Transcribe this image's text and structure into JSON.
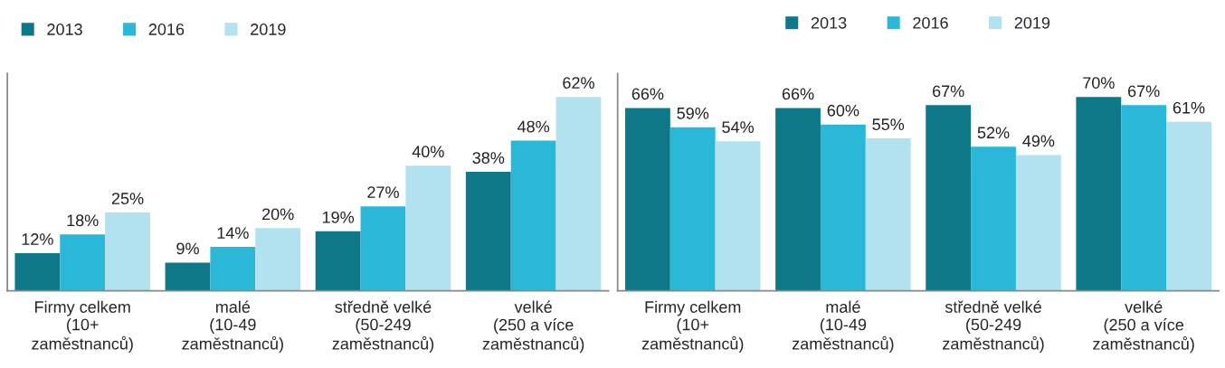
{
  "chart_data": [
    {
      "type": "bar",
      "categories": [
        "Firmy celkem\n(10+\nzaměstnanců)",
        "malé\n(10-49\nzaměstnanců)",
        "středně velké\n(50-249\nzaměstnanců)",
        "velké\n(250 a více\nzaměstnanců)"
      ],
      "legend": "top left",
      "tick_labels": "x",
      "grid": false,
      "series": [
        {
          "name": "2013",
          "color": "#0e7888",
          "values": [
            12,
            9,
            19,
            38
          ],
          "value_labels": [
            "12%",
            "9%",
            "19%",
            "38%"
          ]
        },
        {
          "name": "2016",
          "color": "#2bb8d8",
          "values": [
            18,
            14,
            27,
            48
          ],
          "value_labels": [
            "18%",
            "14%",
            "27%",
            "48%"
          ]
        },
        {
          "name": "2019",
          "color": "#b2e1ef",
          "values": [
            25,
            20,
            40,
            62
          ],
          "value_labels": [
            "25%",
            "20%",
            "40%",
            "62%"
          ]
        }
      ]
    },
    {
      "type": "bar",
      "categories": [
        "Firmy celkem\n(10+\nzaměstnanců)",
        "malé\n(10-49\nzaměstnanců)",
        "středně velké\n(50-249\nzaměstnanců)",
        "velké\n(250 a více\nzaměstnanců)"
      ],
      "legend": "top",
      "tick_labels": "x",
      "grid": false,
      "series": [
        {
          "name": "2013",
          "color": "#0e7888",
          "values": [
            66,
            66,
            67,
            70
          ],
          "value_labels": [
            "66%",
            "66%",
            "67%",
            "70%"
          ]
        },
        {
          "name": "2016",
          "color": "#2bb8d8",
          "values": [
            59,
            60,
            52,
            67
          ],
          "value_labels": [
            "59%",
            "60%",
            "52%",
            "67%"
          ]
        },
        {
          "name": "2019",
          "color": "#b2e1ef",
          "values": [
            54,
            55,
            49,
            61
          ],
          "value_labels": [
            "54%",
            "55%",
            "49%",
            "61%"
          ]
        }
      ]
    }
  ]
}
